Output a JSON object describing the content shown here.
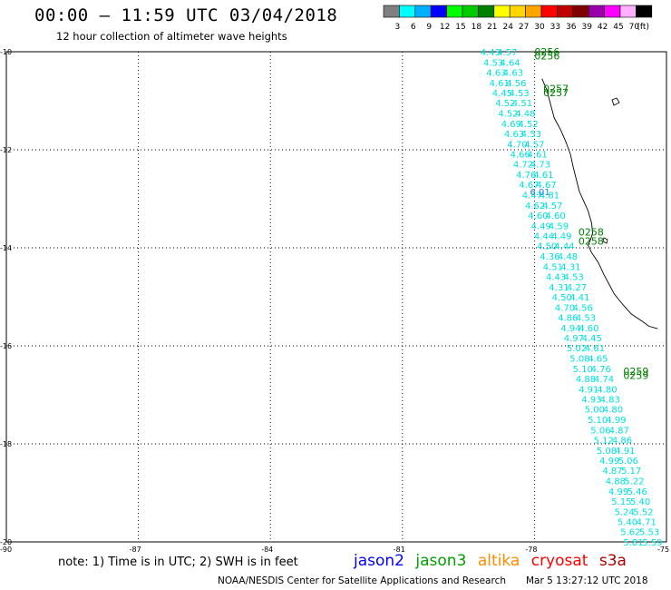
{
  "header": {
    "title": "00:00 – 11:59 UTC 03/04/2018",
    "subtitle": "12 hour collection of altimeter wave heights"
  },
  "legend": {
    "unit": "(ft)",
    "entries": [
      {
        "label": "3",
        "color": "#808080"
      },
      {
        "label": "6",
        "color": "#00ffff"
      },
      {
        "label": "9",
        "color": "#00b0ff"
      },
      {
        "label": "12",
        "color": "#0000ff"
      },
      {
        "label": "15",
        "color": "#00ff00"
      },
      {
        "label": "18",
        "color": "#00cc00"
      },
      {
        "label": "21",
        "color": "#008000"
      },
      {
        "label": "24",
        "color": "#ffff00"
      },
      {
        "label": "27",
        "color": "#ffd700"
      },
      {
        "label": "30",
        "color": "#ffa500"
      },
      {
        "label": "33",
        "color": "#ff0000"
      },
      {
        "label": "36",
        "color": "#c00000"
      },
      {
        "label": "39",
        "color": "#800000"
      },
      {
        "label": "42",
        "color": "#9900aa"
      },
      {
        "label": "45",
        "color": "#ff00ff"
      },
      {
        "label": "70",
        "color": "#ffb0ff"
      },
      {
        "label": "",
        "color": "#000000"
      }
    ]
  },
  "map": {
    "lat_labels": [
      "-10",
      "-12",
      "-14",
      "-16",
      "-18",
      "-20"
    ],
    "lon_labels": [
      "-90",
      "-87",
      "-84",
      "-81",
      "-78",
      "-75"
    ],
    "track_color": "#00e0e0",
    "time_color": "#008000",
    "track_left_values": [
      "4.43",
      "4.53",
      "4.63",
      "4.61",
      "4.45",
      "4.52",
      "4.52",
      "4.69",
      "4.63",
      "4.70",
      "4.66",
      "4.72",
      "4.76",
      "4.67",
      "4.47",
      "4.62",
      "4.60",
      "4.49",
      "4.44",
      "4.50",
      "4.36",
      "4.51",
      "4.43",
      "4.31",
      "4.50",
      "4.70",
      "4.86",
      "4.94",
      "4.97",
      "5.02",
      "5.08",
      "5.10",
      "4.88",
      "4.91",
      "4.93",
      "5.00",
      "5.10",
      "5.06",
      "5.12",
      "5.08",
      "4.99",
      "4.87",
      "4.88",
      "4.99",
      "5.15",
      "5.24",
      "5.40",
      "5.62",
      "5.81"
    ],
    "track_right_values": [
      "4.57",
      "4.64",
      "4.63",
      "4.56",
      "4.53",
      "4.51",
      "4.48",
      "4.52",
      "4.53",
      "4.57",
      "4.61",
      "4.73",
      "4.61",
      "4.67",
      "4.81",
      "4.57",
      "4.60",
      "4.59",
      "4.49",
      "4.44",
      "4.48",
      "4.31",
      "4.53",
      "4.27",
      "4.41",
      "4.56",
      "4.53",
      "4.60",
      "4.45",
      "4.61",
      "4.65",
      "4.76",
      "4.74",
      "4.80",
      "4.83",
      "4.80",
      "4.99",
      "4.87",
      "4.86",
      "4.91",
      "5.06",
      "5.17",
      "5.22",
      "5.46",
      "5.40",
      "5.52",
      "4.71",
      "5.53",
      "5.59"
    ],
    "highlight_value": "6.01",
    "time_labels": [
      {
        "text": "0256",
        "lat": -10.0,
        "lon": -78.0
      },
      {
        "text": "0256",
        "lat": -10.08,
        "lon": -78.0
      },
      {
        "text": "0257",
        "lat": -10.75,
        "lon": -77.8
      },
      {
        "text": "0257",
        "lat": -10.83,
        "lon": -77.8
      },
      {
        "text": "0258",
        "lat": -13.68,
        "lon": -77.0
      },
      {
        "text": "0258",
        "lat": -13.86,
        "lon": -77.0
      },
      {
        "text": "0259",
        "lat": -16.52,
        "lon": -75.98
      },
      {
        "text": "0259",
        "lat": -16.6,
        "lon": -75.98
      }
    ]
  },
  "footer": {
    "note": "note: 1) Time is in UTC; 2) SWH is in feet",
    "satellites": [
      {
        "name": "jason2",
        "color": "#0000ff"
      },
      {
        "name": "jason3",
        "color": "#00a000"
      },
      {
        "name": "altika",
        "color": "#ff8c00"
      },
      {
        "name": "cryosat",
        "color": "#ff0000"
      },
      {
        "name": "s3a",
        "color": "#b00000"
      }
    ],
    "credit": "NOAA/NESDIS Center for Satellite Applications and Research",
    "timestamp": "Mar  5 13:27:12 UTC 2018"
  }
}
